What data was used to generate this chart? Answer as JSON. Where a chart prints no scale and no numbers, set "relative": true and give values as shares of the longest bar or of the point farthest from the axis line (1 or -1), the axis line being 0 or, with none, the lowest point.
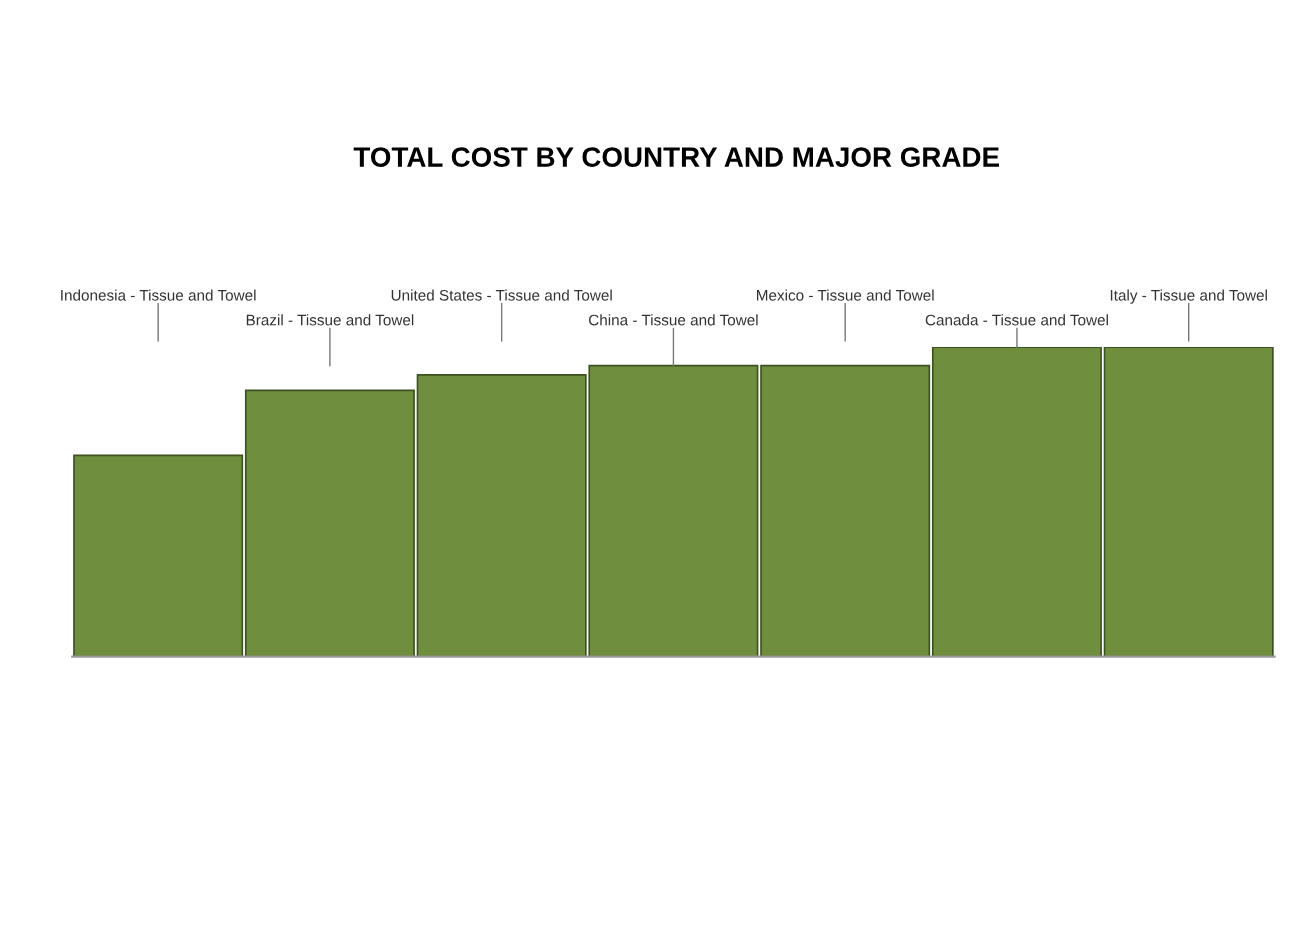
{
  "chart_data": {
    "type": "bar",
    "title": "TOTAL COST BY COUNTRY AND MAJOR GRADE",
    "categories": [
      "Indonesia - Tissue and Towel",
      "Brazil - Tissue and Towel",
      "United States - Tissue and Towel",
      "China - Tissue and Towel",
      "Mexico - Tissue and Towel",
      "Canada - Tissue and Towel",
      "Italy - Tissue and Towel"
    ],
    "values": [
      0.65,
      0.86,
      0.91,
      0.94,
      0.94,
      1,
      1
    ],
    "color": "#6f8f3f",
    "relative": true
  }
}
